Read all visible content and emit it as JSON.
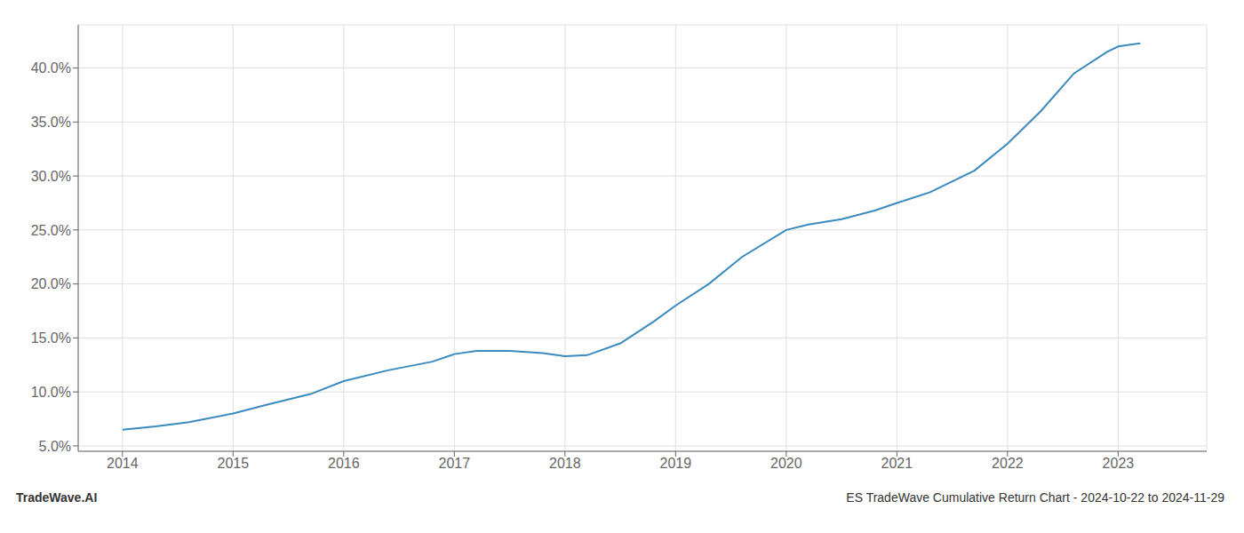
{
  "chart_data": {
    "type": "line",
    "title": "ES TradeWave Cumulative Return Chart - 2024-10-22 to 2024-11-29",
    "annotations": [
      "TradeWave.AI"
    ],
    "x": [
      2014,
      2014.3,
      2014.6,
      2015,
      2015.3,
      2015.7,
      2016,
      2016.4,
      2016.8,
      2017,
      2017.2,
      2017.5,
      2017.8,
      2018,
      2018.2,
      2018.5,
      2018.8,
      2019,
      2019.3,
      2019.6,
      2020,
      2020.2,
      2020.5,
      2020.8,
      2021,
      2021.3,
      2021.7,
      2022,
      2022.3,
      2022.6,
      2022.9,
      2023,
      2023.2
    ],
    "values": [
      6.5,
      6.8,
      7.2,
      8.0,
      8.8,
      9.8,
      11.0,
      12.0,
      12.8,
      13.5,
      13.8,
      13.8,
      13.6,
      13.3,
      13.4,
      14.5,
      16.5,
      18.0,
      20.0,
      22.5,
      25.0,
      25.5,
      26.0,
      26.8,
      27.5,
      28.5,
      30.5,
      33.0,
      36.0,
      39.5,
      41.5,
      42.0,
      42.3
    ],
    "color": "#3a8abf",
    "xlim": [
      2013.6,
      2023.8
    ],
    "ylim": [
      4.5,
      44.0
    ],
    "xticks": [
      2014,
      2015,
      2016,
      2017,
      2018,
      2019,
      2020,
      2021,
      2022,
      2023
    ],
    "yticks": [
      {
        "value": 5,
        "label": "5.0%"
      },
      {
        "value": 10,
        "label": "10.0%"
      },
      {
        "value": 15,
        "label": "15.0%"
      },
      {
        "value": 20,
        "label": "20.0%"
      },
      {
        "value": 25,
        "label": "25.0%"
      },
      {
        "value": 30,
        "label": "30.0%"
      },
      {
        "value": 35,
        "label": "35.0%"
      },
      {
        "value": 40,
        "label": "40.0%"
      }
    ],
    "grid": true
  }
}
